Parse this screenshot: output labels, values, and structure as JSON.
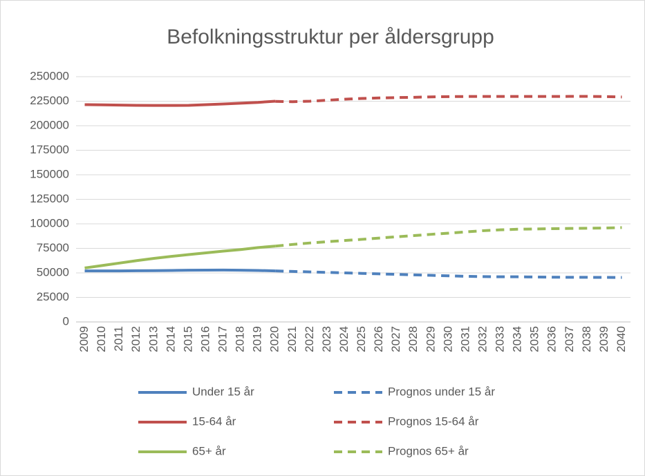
{
  "chart_data": {
    "type": "line",
    "title": "Befolkningsstruktur per åldersgrupp",
    "categories": [
      "2009",
      "2010",
      "2011",
      "2012",
      "2013",
      "2014",
      "2015",
      "2016",
      "2017",
      "2018",
      "2019",
      "2020",
      "2021",
      "2022",
      "2023",
      "2024",
      "2025",
      "2026",
      "2027",
      "2028",
      "2029",
      "2030",
      "2031",
      "2032",
      "2033",
      "2034",
      "2035",
      "2036",
      "2037",
      "2038",
      "2039",
      "2040"
    ],
    "ylim": [
      0,
      250000
    ],
    "yticks": [
      0,
      25000,
      50000,
      75000,
      100000,
      125000,
      150000,
      175000,
      200000,
      225000,
      250000
    ],
    "grid": true,
    "legend": "bottom",
    "series": [
      {
        "name": "Under 15 år",
        "color": "#4f81bd",
        "dashed": false,
        "values": [
          52000,
          52000,
          52000,
          52200,
          52300,
          52500,
          52700,
          52800,
          52900,
          52700,
          52500,
          52000,
          null,
          null,
          null,
          null,
          null,
          null,
          null,
          null,
          null,
          null,
          null,
          null,
          null,
          null,
          null,
          null,
          null,
          null,
          null,
          null
        ]
      },
      {
        "name": "Prognos under 15 år",
        "color": "#4f81bd",
        "dashed": true,
        "values": [
          null,
          null,
          null,
          null,
          null,
          null,
          null,
          null,
          null,
          null,
          null,
          52000,
          51500,
          51000,
          50500,
          50000,
          49500,
          49000,
          48500,
          48000,
          47500,
          47000,
          46500,
          46200,
          46000,
          46000,
          45800,
          45600,
          45500,
          45500,
          45400,
          45300
        ]
      },
      {
        "name": "15-64 år",
        "color": "#c0504d",
        "dashed": false,
        "values": [
          221500,
          221300,
          221000,
          220800,
          220700,
          220700,
          220800,
          221500,
          222200,
          223000,
          223800,
          225000,
          null,
          null,
          null,
          null,
          null,
          null,
          null,
          null,
          null,
          null,
          null,
          null,
          null,
          null,
          null,
          null,
          null,
          null,
          null,
          null
        ]
      },
      {
        "name": "Prognos 15-64 år",
        "color": "#c0504d",
        "dashed": true,
        "values": [
          null,
          null,
          null,
          null,
          null,
          null,
          null,
          null,
          null,
          null,
          null,
          224800,
          224500,
          225000,
          226000,
          227000,
          227800,
          228300,
          228700,
          229000,
          229400,
          229700,
          229800,
          229800,
          229800,
          229800,
          229800,
          229800,
          229900,
          229900,
          229700,
          229300
        ]
      },
      {
        "name": "65+ år",
        "color": "#9bbb59",
        "dashed": false,
        "values": [
          55000,
          57500,
          60000,
          62500,
          64800,
          66800,
          68700,
          70400,
          72200,
          73800,
          75800,
          77300,
          null,
          null,
          null,
          null,
          null,
          null,
          null,
          null,
          null,
          null,
          null,
          null,
          null,
          null,
          null,
          null,
          null,
          null,
          null,
          null
        ]
      },
      {
        "name": "Prognos 65+ år",
        "color": "#9bbb59",
        "dashed": true,
        "values": [
          null,
          null,
          null,
          null,
          null,
          null,
          null,
          null,
          null,
          null,
          null,
          77300,
          79000,
          80500,
          81800,
          83000,
          84200,
          85500,
          86800,
          88000,
          89300,
          90500,
          91800,
          93000,
          93900,
          94500,
          94800,
          95100,
          95300,
          95500,
          95700,
          96200
        ]
      }
    ]
  }
}
